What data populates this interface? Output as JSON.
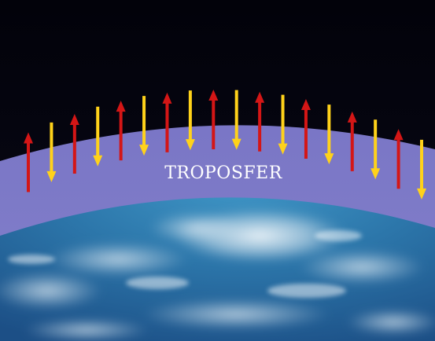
{
  "diagram": {
    "layer_label": "TROPOSFER",
    "colors": {
      "space": "#04040c",
      "troposphere": "#7b79c4",
      "ocean": "#2f7fb0",
      "cloud": "#e8f0f6",
      "arrow_up": "#d41616",
      "arrow_down": "#ffd21a"
    },
    "arrows": [
      {
        "direction": "up",
        "color": "red"
      },
      {
        "direction": "down",
        "color": "yellow"
      },
      {
        "direction": "up",
        "color": "red"
      },
      {
        "direction": "down",
        "color": "yellow"
      },
      {
        "direction": "up",
        "color": "red"
      },
      {
        "direction": "down",
        "color": "yellow"
      },
      {
        "direction": "up",
        "color": "red"
      },
      {
        "direction": "down",
        "color": "yellow"
      },
      {
        "direction": "up",
        "color": "red"
      },
      {
        "direction": "down",
        "color": "yellow"
      },
      {
        "direction": "up",
        "color": "red"
      },
      {
        "direction": "down",
        "color": "yellow"
      },
      {
        "direction": "up",
        "color": "red"
      },
      {
        "direction": "down",
        "color": "yellow"
      },
      {
        "direction": "up",
        "color": "red"
      },
      {
        "direction": "down",
        "color": "yellow"
      },
      {
        "direction": "up",
        "color": "red"
      },
      {
        "direction": "down",
        "color": "yellow"
      }
    ]
  }
}
